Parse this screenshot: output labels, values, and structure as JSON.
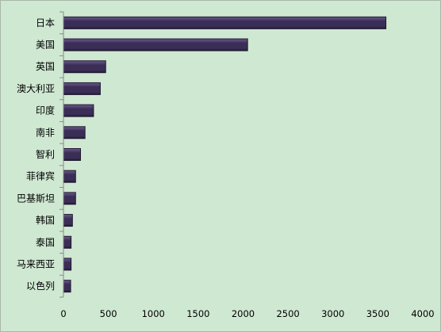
{
  "chart_data": {
    "type": "bar",
    "orientation": "horizontal",
    "categories": [
      "日本",
      "美国",
      "英国",
      "澳大利亚",
      "印度",
      "南非",
      "智利",
      "菲律宾",
      "巴基斯坦",
      "韩国",
      "泰国",
      "马来西亚",
      "以色列"
    ],
    "values": [
      3590,
      2050,
      470,
      410,
      335,
      240,
      190,
      135,
      135,
      100,
      85,
      85,
      80
    ],
    "xlim": [
      0,
      4000
    ],
    "xticks": [
      "0",
      "500",
      "1000",
      "1500",
      "2000",
      "2500",
      "3000",
      "3500",
      "4000"
    ],
    "title": "",
    "xlabel": "",
    "ylabel": "",
    "grid": false,
    "legend": "none",
    "colors": {
      "background": "#cfe8d2",
      "bar_fill": "#3b2e56",
      "bar_highlight": "#6d5c90",
      "bar_shadow": "#1f1830",
      "axis": "#8a8a8a"
    }
  }
}
